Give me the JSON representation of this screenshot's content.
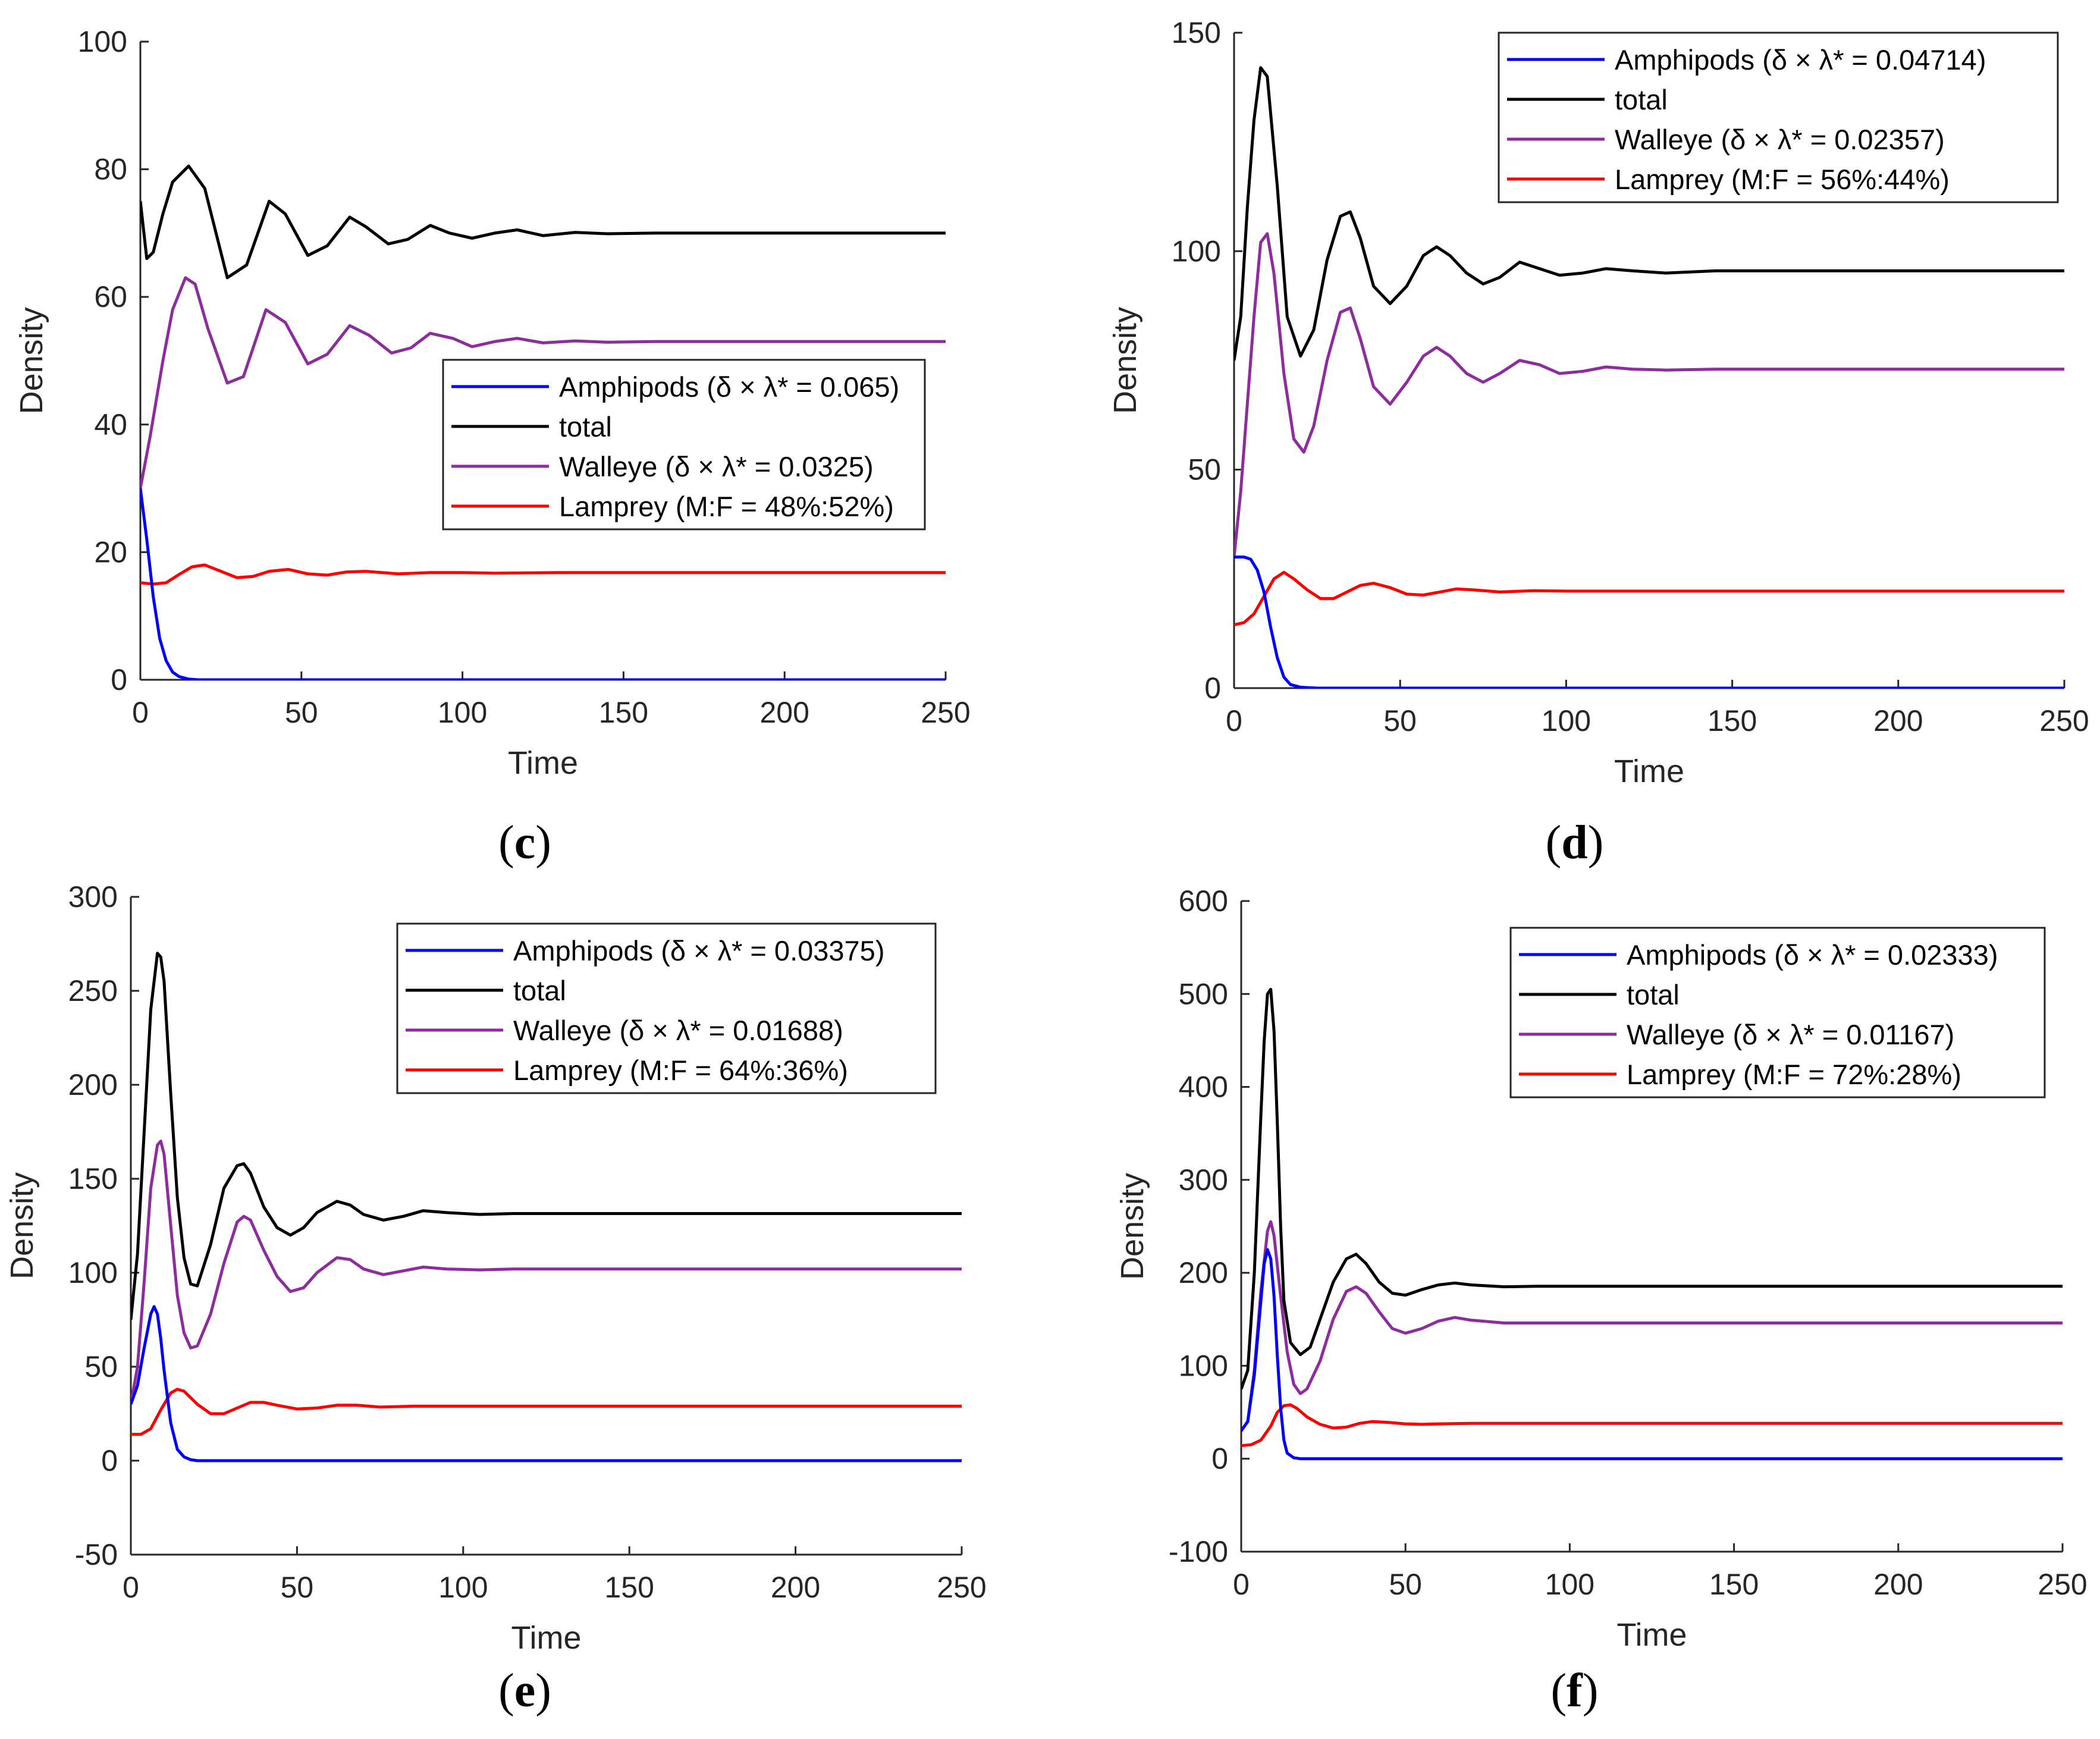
{
  "colors": {
    "amphipods": "#0000ff",
    "total": "#000000",
    "walleye": "#8e2b9e",
    "lamprey": "#ff0000"
  },
  "chart_data": [
    {
      "type": "line",
      "label": "c",
      "caption_open": "(",
      "caption_letter": "c",
      "caption_close": ")",
      "xlabel": "Time",
      "ylabel": "Density",
      "xlim": [
        0,
        250
      ],
      "ylim": [
        0,
        100
      ],
      "xticks": [
        0,
        50,
        100,
        150,
        200,
        250
      ],
      "yticks": [
        0,
        20,
        40,
        60,
        80,
        100
      ],
      "legend_position": "middle-right",
      "legend": [
        "Amphipods (δ × λ* = 0.065)",
        "total",
        "Walleye (δ × λ* = 0.0325)",
        "Lamprey (M:F = 48%:52%)"
      ],
      "series": [
        {
          "name": "Amphipods",
          "color_key": "amphipods",
          "x": [
            0,
            2,
            4,
            6,
            8,
            10,
            12,
            15,
            18,
            22,
            30,
            60,
            100,
            150,
            200,
            250
          ],
          "y": [
            30,
            22,
            13,
            6.5,
            3,
            1.2,
            0.5,
            0.1,
            0,
            0,
            0,
            0,
            0,
            0,
            0,
            0
          ]
        },
        {
          "name": "total",
          "color_key": "total",
          "x": [
            0,
            2,
            4,
            7,
            10,
            15,
            20,
            27,
            33,
            40,
            45,
            52,
            58,
            65,
            70,
            77,
            83,
            90,
            96,
            103,
            110,
            117,
            125,
            135,
            145,
            160,
            180,
            200,
            225,
            250
          ],
          "y": [
            75,
            66,
            67,
            73,
            78,
            80.5,
            77,
            63,
            65,
            75,
            73,
            66.5,
            68,
            72.5,
            71,
            68.3,
            69,
            71.2,
            70,
            69.2,
            70,
            70.5,
            69.6,
            70.1,
            69.9,
            70,
            70,
            70,
            70,
            70
          ]
        },
        {
          "name": "Walleye",
          "color_key": "walleye",
          "x": [
            0,
            3,
            7,
            10,
            14,
            17,
            21,
            27,
            32,
            39,
            45,
            52,
            58,
            65,
            71,
            78,
            84,
            90,
            97,
            103,
            110,
            117,
            125,
            135,
            145,
            160,
            180,
            200,
            225,
            250
          ],
          "y": [
            30,
            38,
            50,
            58,
            63,
            62,
            55,
            46.5,
            47.5,
            58,
            56,
            49.5,
            51,
            55.5,
            54,
            51.2,
            52,
            54.3,
            53.5,
            52.2,
            53,
            53.5,
            52.8,
            53.1,
            52.9,
            53,
            53,
            53,
            53,
            53
          ]
        },
        {
          "name": "Lamprey",
          "color_key": "lamprey",
          "x": [
            0,
            4,
            8,
            12,
            16,
            20,
            25,
            30,
            35,
            40,
            46,
            52,
            58,
            64,
            70,
            80,
            90,
            100,
            110,
            130,
            160,
            200,
            250
          ],
          "y": [
            15.2,
            15,
            15.2,
            16.5,
            17.7,
            18,
            17,
            16,
            16.2,
            17,
            17.3,
            16.6,
            16.4,
            16.9,
            17,
            16.6,
            16.8,
            16.8,
            16.7,
            16.8,
            16.8,
            16.8,
            16.8
          ]
        }
      ]
    },
    {
      "type": "line",
      "label": "d",
      "caption_open": "(",
      "caption_letter": "d",
      "caption_close": ")",
      "xlabel": "Time",
      "ylabel": "Density",
      "xlim": [
        0,
        250
      ],
      "ylim": [
        0,
        150
      ],
      "xticks": [
        0,
        50,
        100,
        150,
        200,
        250
      ],
      "yticks": [
        0,
        50,
        100,
        150
      ],
      "legend_position": "top-right",
      "legend": [
        "Amphipods (δ × λ* = 0.04714)",
        "total",
        "Walleye (δ × λ* = 0.02357)",
        "Lamprey (M:F = 56%:44%)"
      ],
      "series": [
        {
          "name": "Amphipods",
          "color_key": "amphipods",
          "x": [
            0,
            3,
            5,
            7,
            9,
            11,
            13,
            15,
            17,
            20,
            25,
            40,
            100,
            150,
            200,
            250
          ],
          "y": [
            30,
            30,
            29.5,
            27,
            22,
            14,
            7,
            2.5,
            0.8,
            0.2,
            0,
            0,
            0,
            0,
            0,
            0
          ]
        },
        {
          "name": "total",
          "color_key": "total",
          "x": [
            0,
            2,
            4,
            6,
            8,
            10,
            13,
            16,
            20,
            24,
            28,
            32,
            35,
            38,
            42,
            47,
            52,
            57,
            61,
            65,
            70,
            75,
            80,
            86,
            92,
            98,
            105,
            112,
            120,
            130,
            145,
            170,
            200,
            250
          ],
          "y": [
            75,
            85,
            110,
            130,
            142,
            140,
            115,
            85,
            76,
            82,
            98,
            108,
            109,
            103,
            92,
            88,
            92,
            99,
            101,
            99,
            95,
            92.5,
            94,
            97.5,
            96,
            94.5,
            95,
            96,
            95.5,
            95,
            95.5,
            95.5,
            95.5,
            95.5
          ]
        },
        {
          "name": "Walleye",
          "color_key": "walleye",
          "x": [
            0,
            2,
            4,
            6,
            8,
            10,
            12,
            15,
            18,
            21,
            24,
            28,
            32,
            35,
            38,
            42,
            47,
            52,
            57,
            61,
            65,
            70,
            75,
            80,
            86,
            92,
            98,
            105,
            112,
            120,
            130,
            145,
            170,
            200,
            250
          ],
          "y": [
            30,
            45,
            65,
            85,
            102,
            104,
            95,
            72,
            57,
            54,
            60,
            75,
            86,
            87,
            80,
            69,
            65,
            70,
            76,
            78,
            76,
            72,
            70,
            72,
            75,
            74,
            72,
            72.5,
            73.5,
            73,
            72.8,
            73,
            73,
            73,
            73
          ]
        },
        {
          "name": "Lamprey",
          "color_key": "lamprey",
          "x": [
            0,
            3,
            6,
            9,
            12,
            15,
            18,
            22,
            26,
            30,
            34,
            38,
            42,
            47,
            52,
            57,
            62,
            67,
            72,
            80,
            90,
            100,
            120,
            150,
            200,
            250
          ],
          "y": [
            14.5,
            15,
            17,
            21,
            25,
            26.5,
            25,
            22.5,
            20.5,
            20.5,
            22,
            23.5,
            24,
            23,
            21.5,
            21.3,
            22,
            22.7,
            22.5,
            22,
            22.3,
            22.2,
            22.2,
            22.2,
            22.2,
            22.2
          ]
        }
      ]
    },
    {
      "type": "line",
      "label": "e",
      "caption_open": "(",
      "caption_letter": "e",
      "caption_close": ")",
      "xlabel": "Time",
      "ylabel": "Density",
      "xlim": [
        0,
        250
      ],
      "ylim": [
        -50,
        300
      ],
      "xticks": [
        0,
        50,
        100,
        150,
        200,
        250
      ],
      "yticks": [
        -50,
        0,
        50,
        100,
        150,
        200,
        250,
        300
      ],
      "legend_position": "top-right",
      "legend": [
        "Amphipods (δ × λ* = 0.03375)",
        "total",
        "Walleye (δ × λ* = 0.01688)",
        "Lamprey (M:F = 64%:36%)"
      ],
      "series": [
        {
          "name": "Amphipods",
          "color_key": "amphipods",
          "x": [
            0,
            2,
            4,
            6,
            7,
            8,
            9,
            10,
            12,
            14,
            16,
            18,
            20,
            25,
            40,
            100,
            150,
            200,
            250
          ],
          "y": [
            30,
            40,
            60,
            78,
            82,
            78,
            65,
            48,
            20,
            6,
            2,
            0.5,
            0,
            0,
            0,
            0,
            0,
            0,
            0
          ]
        },
        {
          "name": "total",
          "color_key": "total",
          "x": [
            0,
            2,
            4,
            6,
            8,
            9,
            10,
            12,
            14,
            16,
            18,
            20,
            24,
            28,
            32,
            34,
            36,
            40,
            44,
            48,
            52,
            56,
            62,
            66,
            70,
            76,
            82,
            88,
            95,
            105,
            115,
            130,
            150,
            200,
            250
          ],
          "y": [
            75,
            110,
            175,
            240,
            270,
            268,
            255,
            195,
            140,
            108,
            94,
            93,
            115,
            145,
            157,
            158,
            153,
            135,
            124,
            120,
            124,
            132,
            138,
            136,
            131,
            128,
            130,
            133,
            132,
            131,
            131.5,
            131.5,
            131.5,
            131.5,
            131.5
          ]
        },
        {
          "name": "Walleye",
          "color_key": "walleye",
          "x": [
            0,
            2,
            4,
            6,
            8,
            9,
            10,
            12,
            14,
            16,
            18,
            20,
            24,
            28,
            32,
            34,
            36,
            40,
            44,
            48,
            52,
            56,
            62,
            66,
            70,
            76,
            82,
            88,
            95,
            105,
            115,
            130,
            150,
            200,
            250
          ],
          "y": [
            30,
            50,
            95,
            145,
            168,
            170,
            163,
            125,
            88,
            68,
            60,
            61,
            78,
            105,
            127,
            130,
            128,
            112,
            98,
            90,
            92,
            100,
            108,
            107,
            102,
            99,
            101,
            103,
            102,
            101.5,
            102,
            102,
            102,
            102,
            102
          ]
        },
        {
          "name": "Lamprey",
          "color_key": "lamprey",
          "x": [
            0,
            3,
            6,
            9,
            12,
            14,
            16,
            20,
            24,
            28,
            32,
            36,
            40,
            44,
            50,
            56,
            62,
            68,
            75,
            85,
            100,
            130,
            200,
            250
          ],
          "y": [
            14,
            14,
            17,
            27,
            36,
            38,
            37,
            30,
            25,
            25,
            28,
            31,
            31,
            29.5,
            27.5,
            28,
            29.5,
            29.5,
            28.5,
            29,
            29,
            29,
            29,
            29
          ]
        }
      ]
    },
    {
      "type": "line",
      "label": "f",
      "caption_open": "(",
      "caption_letter": "f",
      "caption_close": ")",
      "xlabel": "Time",
      "ylabel": "Density",
      "xlim": [
        0,
        250
      ],
      "ylim": [
        -100,
        600
      ],
      "xticks": [
        0,
        50,
        100,
        150,
        200,
        250
      ],
      "yticks": [
        -100,
        0,
        100,
        200,
        300,
        400,
        500,
        600
      ],
      "legend_position": "top-right",
      "legend": [
        "Amphipods (δ × λ* = 0.02333)",
        "total",
        "Walleye (δ × λ* = 0.01167)",
        "Lamprey (M:F = 72%:28%)"
      ],
      "series": [
        {
          "name": "Amphipods",
          "color_key": "amphipods",
          "x": [
            0,
            2,
            4,
            6,
            7,
            8,
            9,
            10,
            11,
            12,
            13,
            14,
            16,
            18,
            22,
            30,
            60,
            100,
            150,
            200,
            250
          ],
          "y": [
            30,
            40,
            90,
            170,
            210,
            225,
            215,
            175,
            110,
            55,
            20,
            6,
            1,
            0,
            0,
            0,
            0,
            0,
            0,
            0,
            0
          ]
        },
        {
          "name": "total",
          "color_key": "total",
          "x": [
            0,
            2,
            4,
            6,
            7,
            8,
            9,
            10,
            11,
            12,
            13,
            15,
            18,
            21,
            24,
            28,
            32,
            35,
            38,
            42,
            46,
            50,
            55,
            60,
            65,
            70,
            80,
            90,
            110,
            150,
            200,
            250
          ],
          "y": [
            75,
            95,
            200,
            370,
            450,
            500,
            505,
            460,
            360,
            250,
            170,
            125,
            112,
            120,
            150,
            190,
            215,
            220,
            210,
            190,
            178,
            176,
            182,
            187,
            189,
            187,
            185,
            185.5,
            185.5,
            185.5,
            185.5,
            185.5
          ]
        },
        {
          "name": "Walleye",
          "color_key": "walleye",
          "x": [
            0,
            2,
            4,
            6,
            8,
            9,
            10,
            12,
            14,
            16,
            18,
            20,
            24,
            28,
            32,
            35,
            38,
            42,
            46,
            50,
            55,
            60,
            65,
            70,
            80,
            90,
            110,
            150,
            200,
            250
          ],
          "y": [
            30,
            40,
            95,
            180,
            245,
            255,
            240,
            175,
            115,
            80,
            70,
            75,
            105,
            150,
            180,
            185,
            178,
            158,
            140,
            135,
            140,
            148,
            152,
            149,
            146,
            146,
            146,
            146,
            146,
            146
          ]
        },
        {
          "name": "Lamprey",
          "color_key": "lamprey",
          "x": [
            0,
            3,
            6,
            9,
            11,
            13,
            15,
            17,
            20,
            24,
            28,
            32,
            36,
            40,
            45,
            50,
            55,
            60,
            70,
            85,
            100,
            150,
            200,
            250
          ],
          "y": [
            14,
            15,
            20,
            35,
            50,
            57,
            58,
            54,
            45,
            37,
            33,
            34,
            38,
            40,
            39,
            37.5,
            37,
            37.5,
            38,
            38,
            38,
            38,
            38,
            38
          ]
        }
      ]
    }
  ]
}
